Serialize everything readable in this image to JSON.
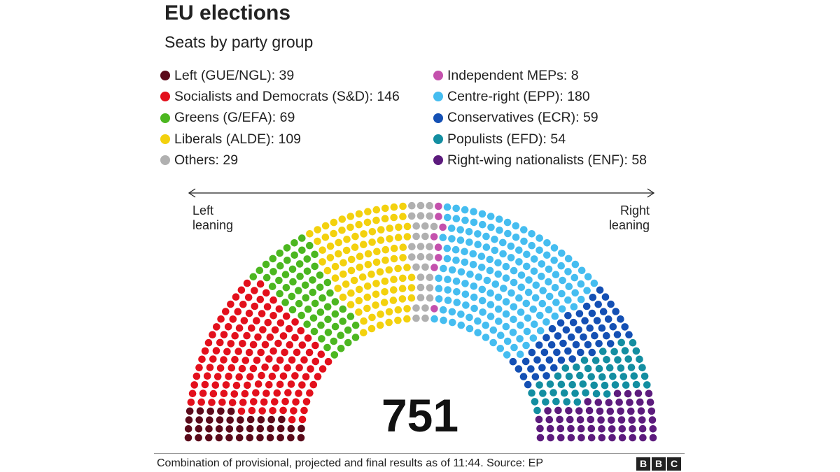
{
  "header": {
    "title": "EU elections",
    "subtitle": "Seats by party group"
  },
  "chart_data": {
    "type": "parliament",
    "title": "EU elections",
    "subtitle": "Seats by party group",
    "total_seats": 751,
    "total_label": "751",
    "series": [
      {
        "name": "Left (GUE/NGL)",
        "value": 39,
        "color": "#5a0a1a",
        "label": "Left (GUE/NGL): 39"
      },
      {
        "name": "Socialists and Democrats (S&D)",
        "value": 146,
        "color": "#e3101c",
        "label": "Socialists and Democrats (S&D): 146"
      },
      {
        "name": "Greens (G/EFA)",
        "value": 69,
        "color": "#4cb720",
        "label": "Greens (G/EFA): 69"
      },
      {
        "name": "Liberals (ALDE)",
        "value": 109,
        "color": "#f3d10e",
        "label": "Liberals (ALDE): 109"
      },
      {
        "name": "Others",
        "value": 29,
        "color": "#b0b0b0",
        "label": "Others: 29"
      },
      {
        "name": "Independent MEPs",
        "value": 8,
        "color": "#c451ad",
        "label": "Independent MEPs: 8"
      },
      {
        "name": "Centre-right (EPP)",
        "value": 180,
        "color": "#45bdf0",
        "label": "Centre-right (EPP): 180"
      },
      {
        "name": "Conservatives (ECR)",
        "value": 59,
        "color": "#1450b4",
        "label": "Conservatives (ECR): 59"
      },
      {
        "name": "Populists (EFD)",
        "value": 54,
        "color": "#138ea1",
        "label": "Populists (EFD): 54"
      },
      {
        "name": "Right-wing nationalists (ENF)",
        "value": 58,
        "color": "#5c1b7d",
        "label": "Right-wing nationalists (ENF): 58"
      }
    ],
    "legend_columns": [
      [
        0,
        1,
        2,
        3,
        4
      ],
      [
        5,
        6,
        7,
        8,
        9
      ]
    ],
    "axis_left_label": "Left leaning",
    "axis_right_label": "Right leaning"
  },
  "annotations": {
    "left_line1": "Left",
    "left_line2": "leaning",
    "right_line1": "Right",
    "right_line2": "leaning"
  },
  "footer": {
    "source": "Combination of provisional, projected and final results as of 11:44. Source: EP",
    "logo_letters": [
      "B",
      "B",
      "C"
    ]
  }
}
